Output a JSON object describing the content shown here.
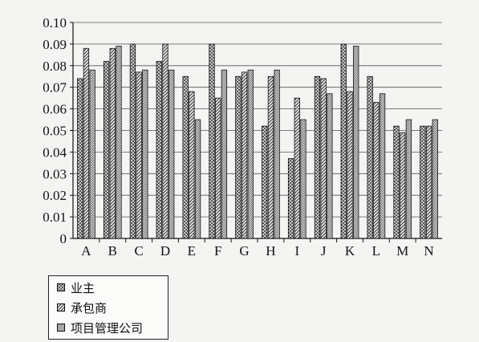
{
  "chart_data": {
    "type": "bar",
    "title": "",
    "xlabel": "",
    "ylabel": "",
    "ylim": [
      0,
      0.1
    ],
    "yticks": [
      "0",
      "0.01",
      "0.02",
      "0.03",
      "0.04",
      "0.05",
      "0.06",
      "0.07",
      "0.08",
      "0.09",
      "0.10"
    ],
    "categories": [
      "A",
      "B",
      "C",
      "D",
      "E",
      "F",
      "G",
      "H",
      "I",
      "J",
      "K",
      "L",
      "M",
      "N"
    ],
    "grid": true,
    "legend_position": "bottom-left",
    "series": [
      {
        "name": "业主",
        "pattern": "crosshatch",
        "values": [
          0.074,
          0.082,
          0.09,
          0.082,
          0.075,
          0.09,
          0.075,
          0.052,
          0.037,
          0.075,
          0.09,
          0.075,
          0.052,
          0.052
        ]
      },
      {
        "name": "承包商",
        "pattern": "diagonal",
        "values": [
          0.088,
          0.088,
          0.077,
          0.09,
          0.068,
          0.065,
          0.077,
          0.075,
          0.065,
          0.074,
          0.068,
          0.063,
          0.049,
          0.052
        ]
      },
      {
        "name": "项目管理公司",
        "pattern": "dense-crosshatch",
        "values": [
          0.078,
          0.089,
          0.078,
          0.078,
          0.055,
          0.078,
          0.078,
          0.078,
          0.055,
          0.067,
          0.089,
          0.067,
          0.055,
          0.055
        ]
      }
    ]
  },
  "colors": {
    "background": "#f4f4f2",
    "grid": "#555555",
    "bar_outline": "#111111"
  }
}
